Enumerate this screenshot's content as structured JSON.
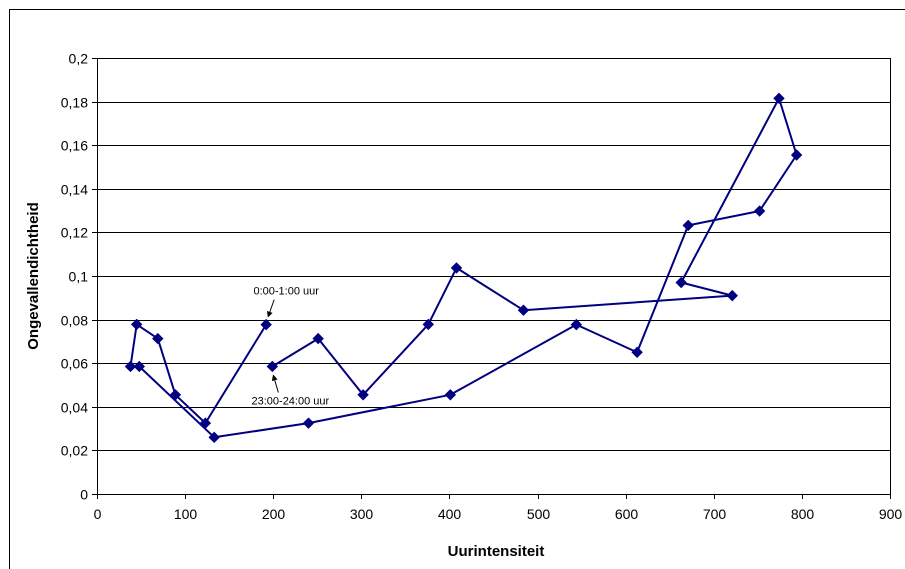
{
  "chart_data": {
    "type": "line",
    "xlabel": "Uurintensiteit",
    "ylabel": "Ongevallendichtheid",
    "xlim": [
      0,
      900
    ],
    "ylim": [
      0,
      0.2
    ],
    "x_ticks": [
      0,
      100,
      200,
      300,
      400,
      500,
      600,
      700,
      800,
      900
    ],
    "x_tick_labels": [
      "0",
      "100",
      "200",
      "300",
      "400",
      "500",
      "600",
      "700",
      "800",
      "900"
    ],
    "y_ticks": [
      0,
      0.02,
      0.04,
      0.06,
      0.08,
      0.1,
      0.12,
      0.14,
      0.16,
      0.18,
      0.2
    ],
    "y_tick_labels": [
      "0",
      "0,02",
      "0,04",
      "0,06",
      "0,08",
      "0,1",
      "0,12",
      "0,14",
      "0,16",
      "0,18",
      "0,2"
    ],
    "grid": "horizontal",
    "series": [
      {
        "color": "#000080",
        "marker": "diamond",
        "x": [
          192,
          123,
          89,
          69,
          45,
          38,
          48,
          133,
          240,
          401,
          544,
          613,
          671,
          752,
          794,
          774,
          663,
          721,
          484,
          408,
          376,
          302,
          251,
          199
        ],
        "y": [
          0.0777,
          0.0325,
          0.0455,
          0.0713,
          0.0778,
          0.0585,
          0.0585,
          0.026,
          0.0325,
          0.0455,
          0.0777,
          0.065,
          0.1232,
          0.1298,
          0.1555,
          0.1815,
          0.097,
          0.091,
          0.0843,
          0.1037,
          0.0778,
          0.0455,
          0.0713,
          0.0585
        ]
      }
    ],
    "annotations": [
      {
        "text": "0:00-1:00 uur",
        "x": 192,
        "y": 0.0777
      },
      {
        "text": "23:00-24:00 uur",
        "x": 199,
        "y": 0.0585
      }
    ]
  }
}
